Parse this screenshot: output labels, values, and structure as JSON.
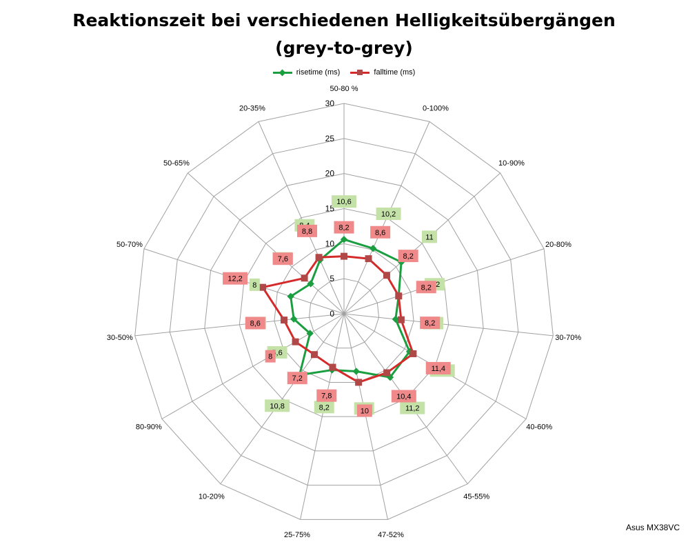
{
  "chart_data": {
    "type": "radar",
    "title_lines": [
      "Reaktionszeit bei verschiedenen Helligkeitsübergängen",
      "(grey-to-grey)"
    ],
    "categories": [
      "50-80 %",
      "0-100%",
      "10-90%",
      "20-80%",
      "30-70%",
      "40-60%",
      "45-55%",
      "47-52%",
      "25-75%",
      "10-20%",
      "80-90%",
      "30-50%",
      "50-70%",
      "50-65%",
      "20-35%"
    ],
    "axis": {
      "min": 0,
      "max": 30,
      "step": 5,
      "ticks": [
        "0",
        "5",
        "10",
        "15",
        "20",
        "25",
        "30"
      ]
    },
    "series": [
      {
        "name": "risetime (ms)",
        "color": "#1a9e40",
        "label_bg": "#c4e2a8",
        "marker": "diamond",
        "values": [
          10.6,
          10.2,
          11,
          8.2,
          7.4,
          10.8,
          11.2,
          8.4,
          8.2,
          10.8,
          5.6,
          7.2,
          8,
          6.4,
          8.4
        ],
        "labels": [
          "10,6",
          "10,2",
          "11",
          "8,2",
          "7,4",
          "10,8",
          "11,2",
          "8,4",
          "8,2",
          "10,8",
          "5,6",
          "7,2",
          "8",
          "6,4",
          "8,4"
        ]
      },
      {
        "name": "falltime (ms)",
        "color": "#d42a2a",
        "label_bg": "#f08a8a",
        "marker": "square",
        "values": [
          8.2,
          8.6,
          8.2,
          8.2,
          8.2,
          11.4,
          10.4,
          10,
          7.8,
          7.2,
          8,
          8.6,
          12.2,
          7.6,
          8.8
        ],
        "labels": [
          "8,2",
          "8,6",
          "8,2",
          "8,2",
          "8,2",
          "11,4",
          "10,4",
          "10",
          "7,8",
          "7,2",
          "8",
          "8,6",
          "12,2",
          "7,6",
          "8,8"
        ]
      }
    ]
  },
  "footer": {
    "label": "Asus MX38VC"
  }
}
